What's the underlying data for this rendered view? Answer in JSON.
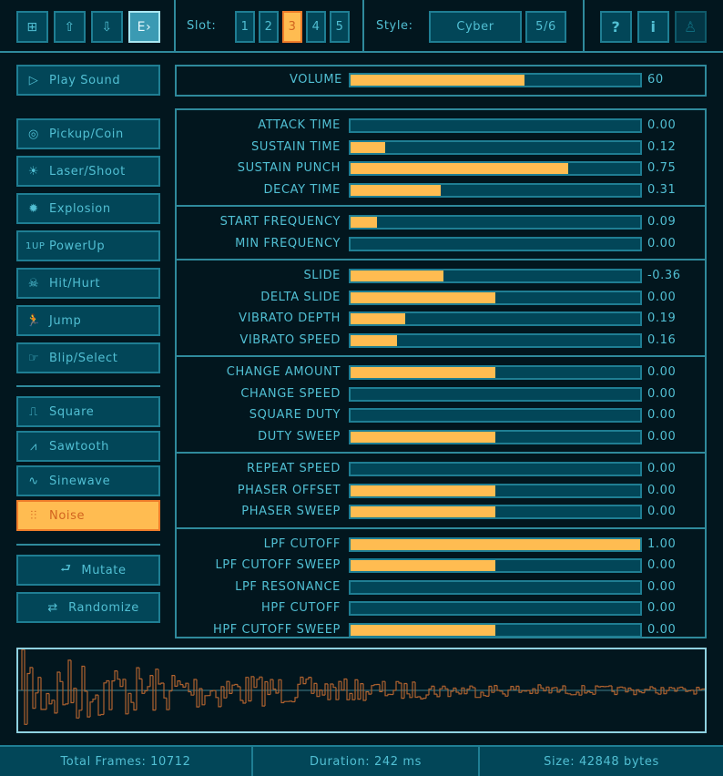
{
  "toolbar": {
    "file_buttons": [
      {
        "icon": "file-new-icon",
        "glyph": "⊞"
      },
      {
        "icon": "file-open-icon",
        "glyph": "⇧"
      },
      {
        "icon": "file-save-icon",
        "glyph": "⇩"
      },
      {
        "icon": "file-export-icon",
        "glyph": "E›"
      }
    ],
    "slot_label": "Slot:",
    "slots": [
      "1",
      "2",
      "3",
      "4",
      "5"
    ],
    "active_slot": "3",
    "style_label": "Style:",
    "style_value": "Cyber",
    "style_index": "5/6",
    "help_buttons": [
      {
        "icon": "help-icon",
        "glyph": "?"
      },
      {
        "icon": "info-icon",
        "glyph": "i"
      },
      {
        "icon": "user-icon",
        "glyph": "♙"
      }
    ]
  },
  "left": {
    "play": {
      "label": "Play Sound",
      "icon": "play-icon",
      "glyph": "▷"
    },
    "presets": [
      {
        "label": "Pickup/Coin",
        "icon": "coin-icon",
        "glyph": "◎"
      },
      {
        "label": "Laser/Shoot",
        "icon": "laser-icon",
        "glyph": "☀"
      },
      {
        "label": "Explosion",
        "icon": "explosion-icon",
        "glyph": "✹"
      },
      {
        "label": "PowerUp",
        "icon": "powerup-icon",
        "glyph": "1UP"
      },
      {
        "label": "Hit/Hurt",
        "icon": "skull-icon",
        "glyph": "☠"
      },
      {
        "label": "Jump",
        "icon": "jump-icon",
        "glyph": "🏃"
      },
      {
        "label": "Blip/Select",
        "icon": "blip-icon",
        "glyph": "☞"
      }
    ],
    "waves": [
      {
        "label": "Square",
        "icon": "square-wave-icon",
        "glyph": "⎍"
      },
      {
        "label": "Sawtooth",
        "icon": "sawtooth-wave-icon",
        "glyph": "⩘"
      },
      {
        "label": "Sinewave",
        "icon": "sine-wave-icon",
        "glyph": "∿"
      },
      {
        "label": "Noise",
        "icon": "noise-wave-icon",
        "glyph": "⫶⫶"
      }
    ],
    "active_wave": "Noise",
    "mutate": {
      "label": "Mutate",
      "icon": "mutate-icon",
      "glyph": "⮐"
    },
    "randomize": {
      "label": "Randomize",
      "icon": "randomize-icon",
      "glyph": "⇄"
    }
  },
  "volume": {
    "label": "VOLUME",
    "value": "60",
    "level": 0.6
  },
  "groups": [
    [
      {
        "label": "ATTACK TIME",
        "value": "0.00",
        "level": 0
      },
      {
        "label": "SUSTAIN TIME",
        "value": "0.12",
        "level": 0.12
      },
      {
        "label": "SUSTAIN PUNCH",
        "value": "0.75",
        "level": 0.75
      },
      {
        "label": "DECAY TIME",
        "value": "0.31",
        "level": 0.31
      }
    ],
    [
      {
        "label": "START FREQUENCY",
        "value": "0.09",
        "level": 0.09
      },
      {
        "label": "MIN FREQUENCY",
        "value": "0.00",
        "level": 0
      }
    ],
    [
      {
        "label": "SLIDE",
        "value": "-0.36",
        "level": 0.32
      },
      {
        "label": "DELTA SLIDE",
        "value": "0.00",
        "level": 0.5
      },
      {
        "label": "VIBRATO DEPTH",
        "value": "0.19",
        "level": 0.19
      },
      {
        "label": "VIBRATO SPEED",
        "value": "0.16",
        "level": 0.16
      }
    ],
    [
      {
        "label": "CHANGE AMOUNT",
        "value": "0.00",
        "level": 0.5
      },
      {
        "label": "CHANGE SPEED",
        "value": "0.00",
        "level": 0
      },
      {
        "label": "SQUARE DUTY",
        "value": "0.00",
        "level": 0
      },
      {
        "label": "DUTY SWEEP",
        "value": "0.00",
        "level": 0.5
      }
    ],
    [
      {
        "label": "REPEAT SPEED",
        "value": "0.00",
        "level": 0
      },
      {
        "label": "PHASER OFFSET",
        "value": "0.00",
        "level": 0.5
      },
      {
        "label": "PHASER SWEEP",
        "value": "0.00",
        "level": 0.5
      }
    ],
    [
      {
        "label": "LPF CUTOFF",
        "value": "1.00",
        "level": 1
      },
      {
        "label": "LPF CUTOFF SWEEP",
        "value": "0.00",
        "level": 0.5
      },
      {
        "label": "LPF RESONANCE",
        "value": "0.00",
        "level": 0
      },
      {
        "label": "HPF CUTOFF",
        "value": "0.00",
        "level": 0
      },
      {
        "label": "HPF CUTOFF SWEEP",
        "value": "0.00",
        "level": 0.5
      }
    ]
  ],
  "status": {
    "frames": "Total Frames: 10712",
    "duration": "Duration: 242 ms",
    "size": "Size: 42848 bytes"
  },
  "colors": {
    "background": "#02161e",
    "button": "#024658",
    "border": "#1f7e93",
    "text": "#51bfd3",
    "accent": "#ffbc51",
    "waveform": "#b0622f"
  }
}
